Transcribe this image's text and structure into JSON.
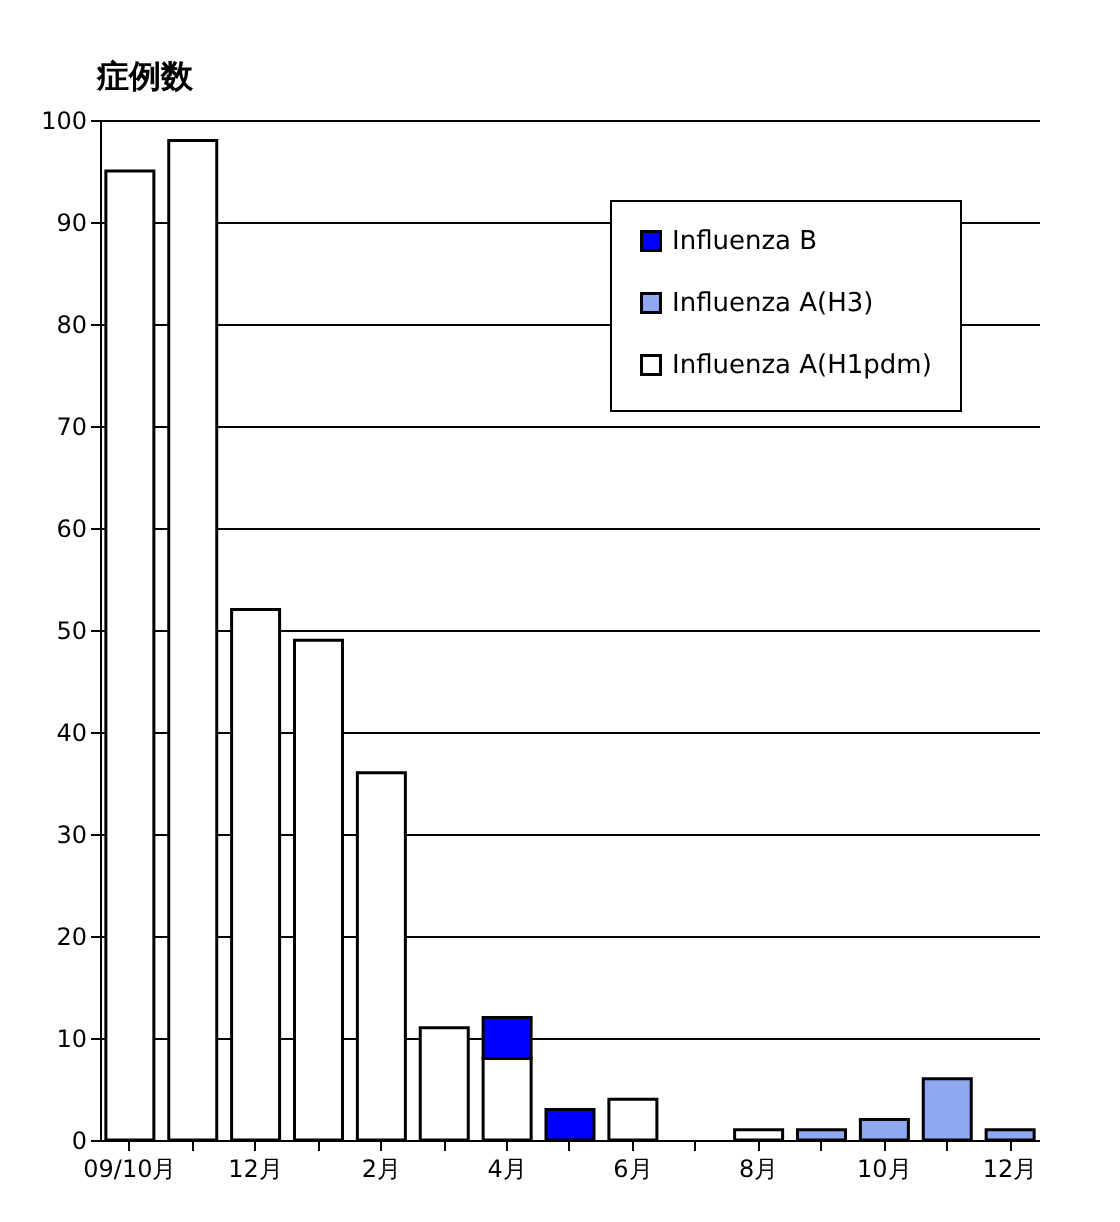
{
  "chart_data": {
    "type": "bar",
    "stacked": true,
    "ylabel": "症例数",
    "categories": [
      "09/10月",
      null,
      "12月",
      null,
      "2月",
      null,
      "4月",
      null,
      "6月",
      null,
      "8月",
      null,
      "10月",
      null,
      "12月"
    ],
    "series": [
      {
        "name": "Influenza A(H1pdm)",
        "color": "#ffffff",
        "values": [
          95,
          98,
          52,
          49,
          36,
          11,
          8,
          null,
          4,
          null,
          1,
          null,
          null,
          null,
          null
        ]
      },
      {
        "name": "Influenza A(H3)",
        "color": "#8fa8f0",
        "values": [
          null,
          null,
          null,
          null,
          null,
          null,
          null,
          null,
          null,
          null,
          null,
          1,
          2,
          6,
          1
        ]
      },
      {
        "name": "Influenza B",
        "color": "#0000ff",
        "values": [
          null,
          null,
          null,
          null,
          null,
          null,
          4,
          3,
          null,
          null,
          null,
          null,
          null,
          null,
          null
        ]
      }
    ],
    "ylim": [
      0,
      100
    ],
    "yticks": [
      0,
      10,
      20,
      30,
      40,
      50,
      60,
      70,
      80,
      90,
      100
    ],
    "grid": "y",
    "legend": "top right"
  }
}
